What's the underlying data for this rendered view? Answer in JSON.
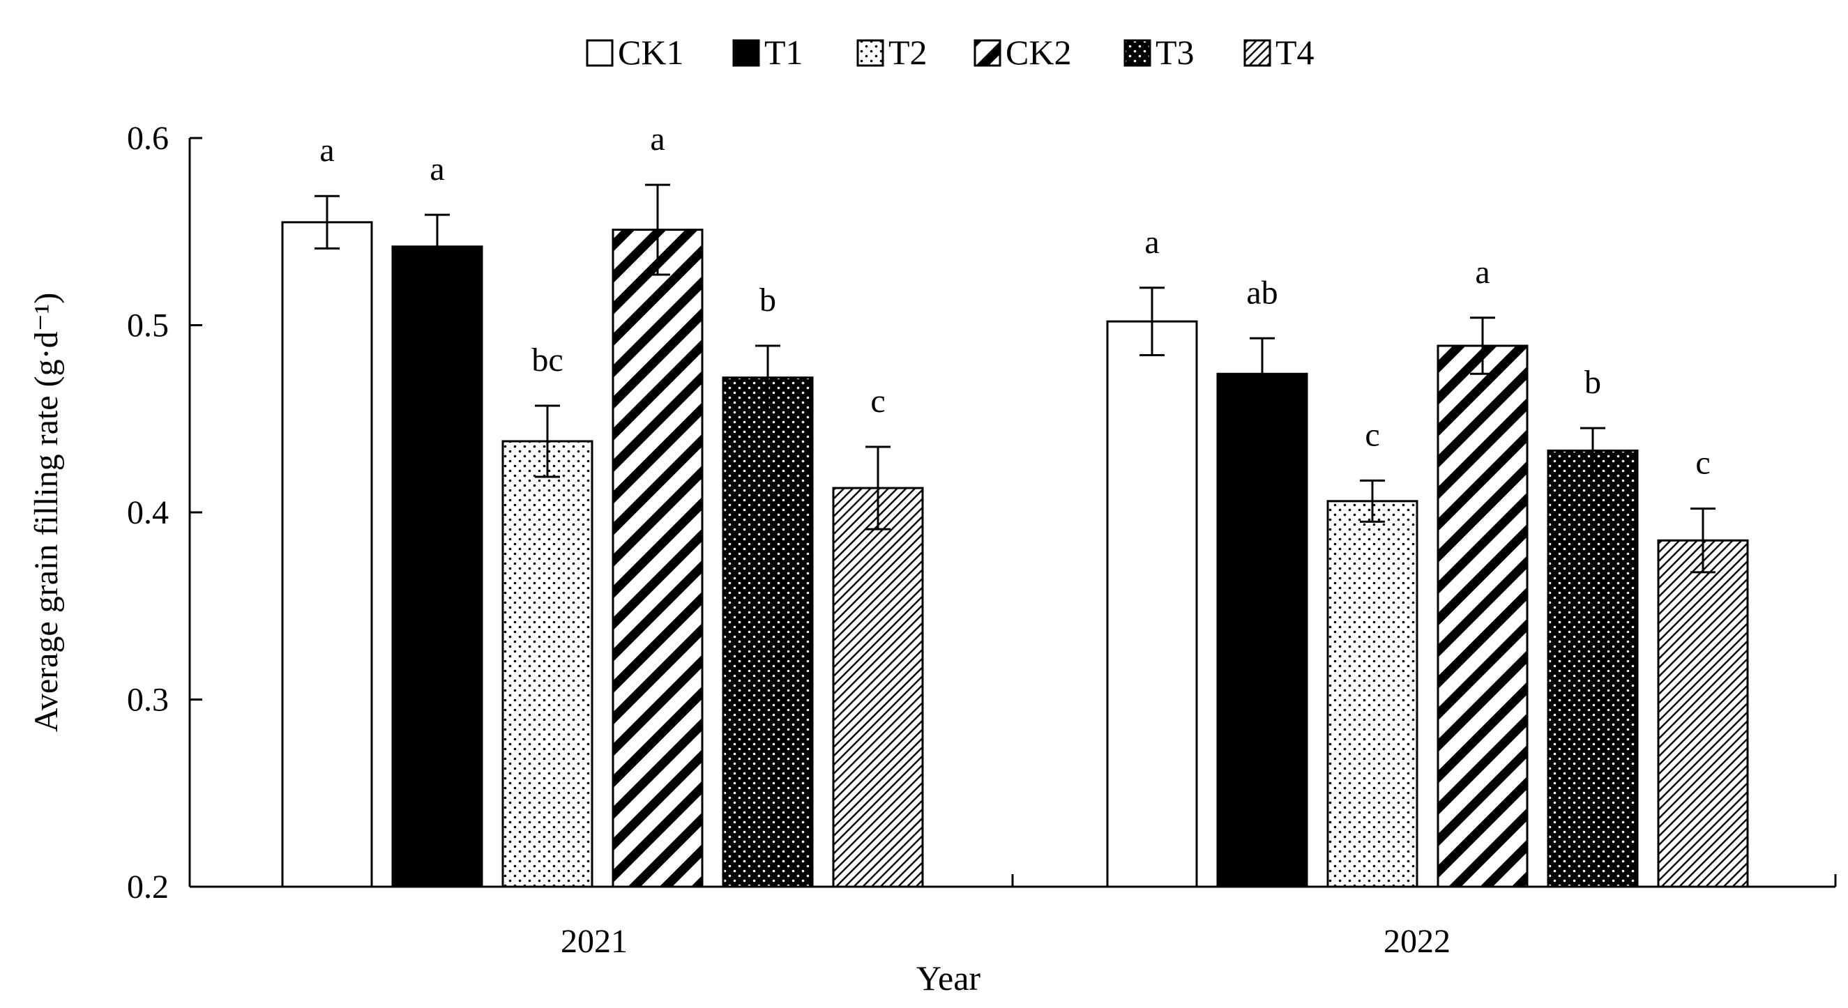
{
  "chart_data": {
    "type": "bar",
    "title": "",
    "xlabel": "Year",
    "ylabel": "Average grain filling rate (g·d⁻¹)",
    "ylim": [
      0.2,
      0.6
    ],
    "yticks": [
      "0.2",
      "0.3",
      "0.4",
      "0.5",
      "0.6"
    ],
    "categories": [
      "2021",
      "2022"
    ],
    "legend_position": "top-center",
    "series": [
      {
        "name": "CK1",
        "pattern": "white",
        "values": [
          0.555,
          0.502
        ],
        "errors": [
          0.014,
          0.018
        ],
        "letters": [
          "a",
          "a"
        ]
      },
      {
        "name": "T1",
        "pattern": "black",
        "values": [
          0.542,
          0.474
        ],
        "errors": [
          0.017,
          0.019
        ],
        "letters": [
          "a",
          "ab"
        ]
      },
      {
        "name": "T2",
        "pattern": "dots",
        "values": [
          0.438,
          0.406
        ],
        "errors": [
          0.019,
          0.011
        ],
        "letters": [
          "bc",
          "c"
        ]
      },
      {
        "name": "CK2",
        "pattern": "wide-diagonal",
        "values": [
          0.551,
          0.489
        ],
        "errors": [
          0.024,
          0.015
        ],
        "letters": [
          "a",
          "a"
        ]
      },
      {
        "name": "T3",
        "pattern": "black-dots",
        "values": [
          0.472,
          0.433
        ],
        "errors": [
          0.017,
          0.012
        ],
        "letters": [
          "b",
          "b"
        ]
      },
      {
        "name": "T4",
        "pattern": "fine-diagonal",
        "values": [
          0.413,
          0.385
        ],
        "errors": [
          0.022,
          0.017
        ],
        "letters": [
          "c",
          "c"
        ]
      }
    ]
  }
}
